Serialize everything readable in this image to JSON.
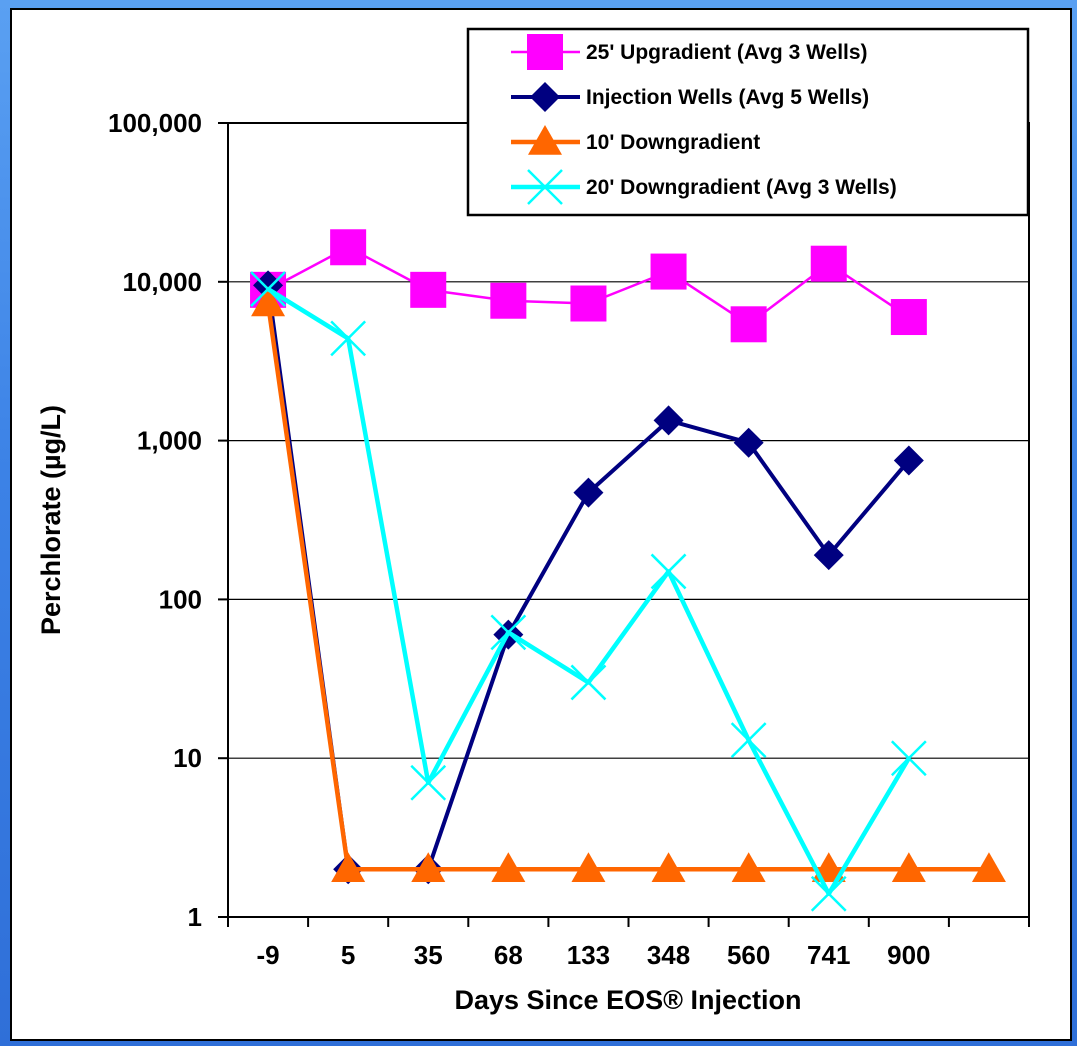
{
  "chart_data": {
    "type": "line",
    "title": "",
    "xlabel": "Days Since EOS® Injection",
    "ylabel": "Perchlorate (µg/L)",
    "y_scale": "log",
    "ylim": [
      1,
      100000
    ],
    "yticks": [
      1,
      10,
      100,
      1000,
      10000,
      100000
    ],
    "ytick_labels": [
      "1",
      "10",
      "100",
      "1,000",
      "10,000",
      "100,000"
    ],
    "categories": [
      "-9",
      "5",
      "35",
      "68",
      "133",
      "348",
      "560",
      "741",
      "900",
      ""
    ],
    "grid": "horizontal",
    "legend_position": "top-right",
    "series": [
      {
        "name": "25' Upgradient (Avg 3 Wells)",
        "color": "#ff00ff",
        "marker": "square",
        "values": [
          8900,
          16500,
          8900,
          7600,
          7300,
          11600,
          5400,
          13000,
          6000,
          null
        ]
      },
      {
        "name": "Injection Wells (Avg 5 Wells)",
        "color": "#000080",
        "marker": "diamond",
        "values": [
          9500,
          2,
          2,
          60,
          470,
          1340,
          970,
          190,
          750,
          null
        ]
      },
      {
        "name": "10' Downgradient",
        "color": "#ff6600",
        "marker": "triangle",
        "values": [
          7300,
          2,
          2,
          2,
          2,
          2,
          2,
          2,
          2,
          2
        ]
      },
      {
        "name": "20' Downgradient (Avg 3 Wells)",
        "color": "#00ffff",
        "marker": "x",
        "values": [
          9000,
          4400,
          7,
          62,
          30,
          150,
          13,
          1.4,
          10,
          null
        ]
      }
    ]
  }
}
